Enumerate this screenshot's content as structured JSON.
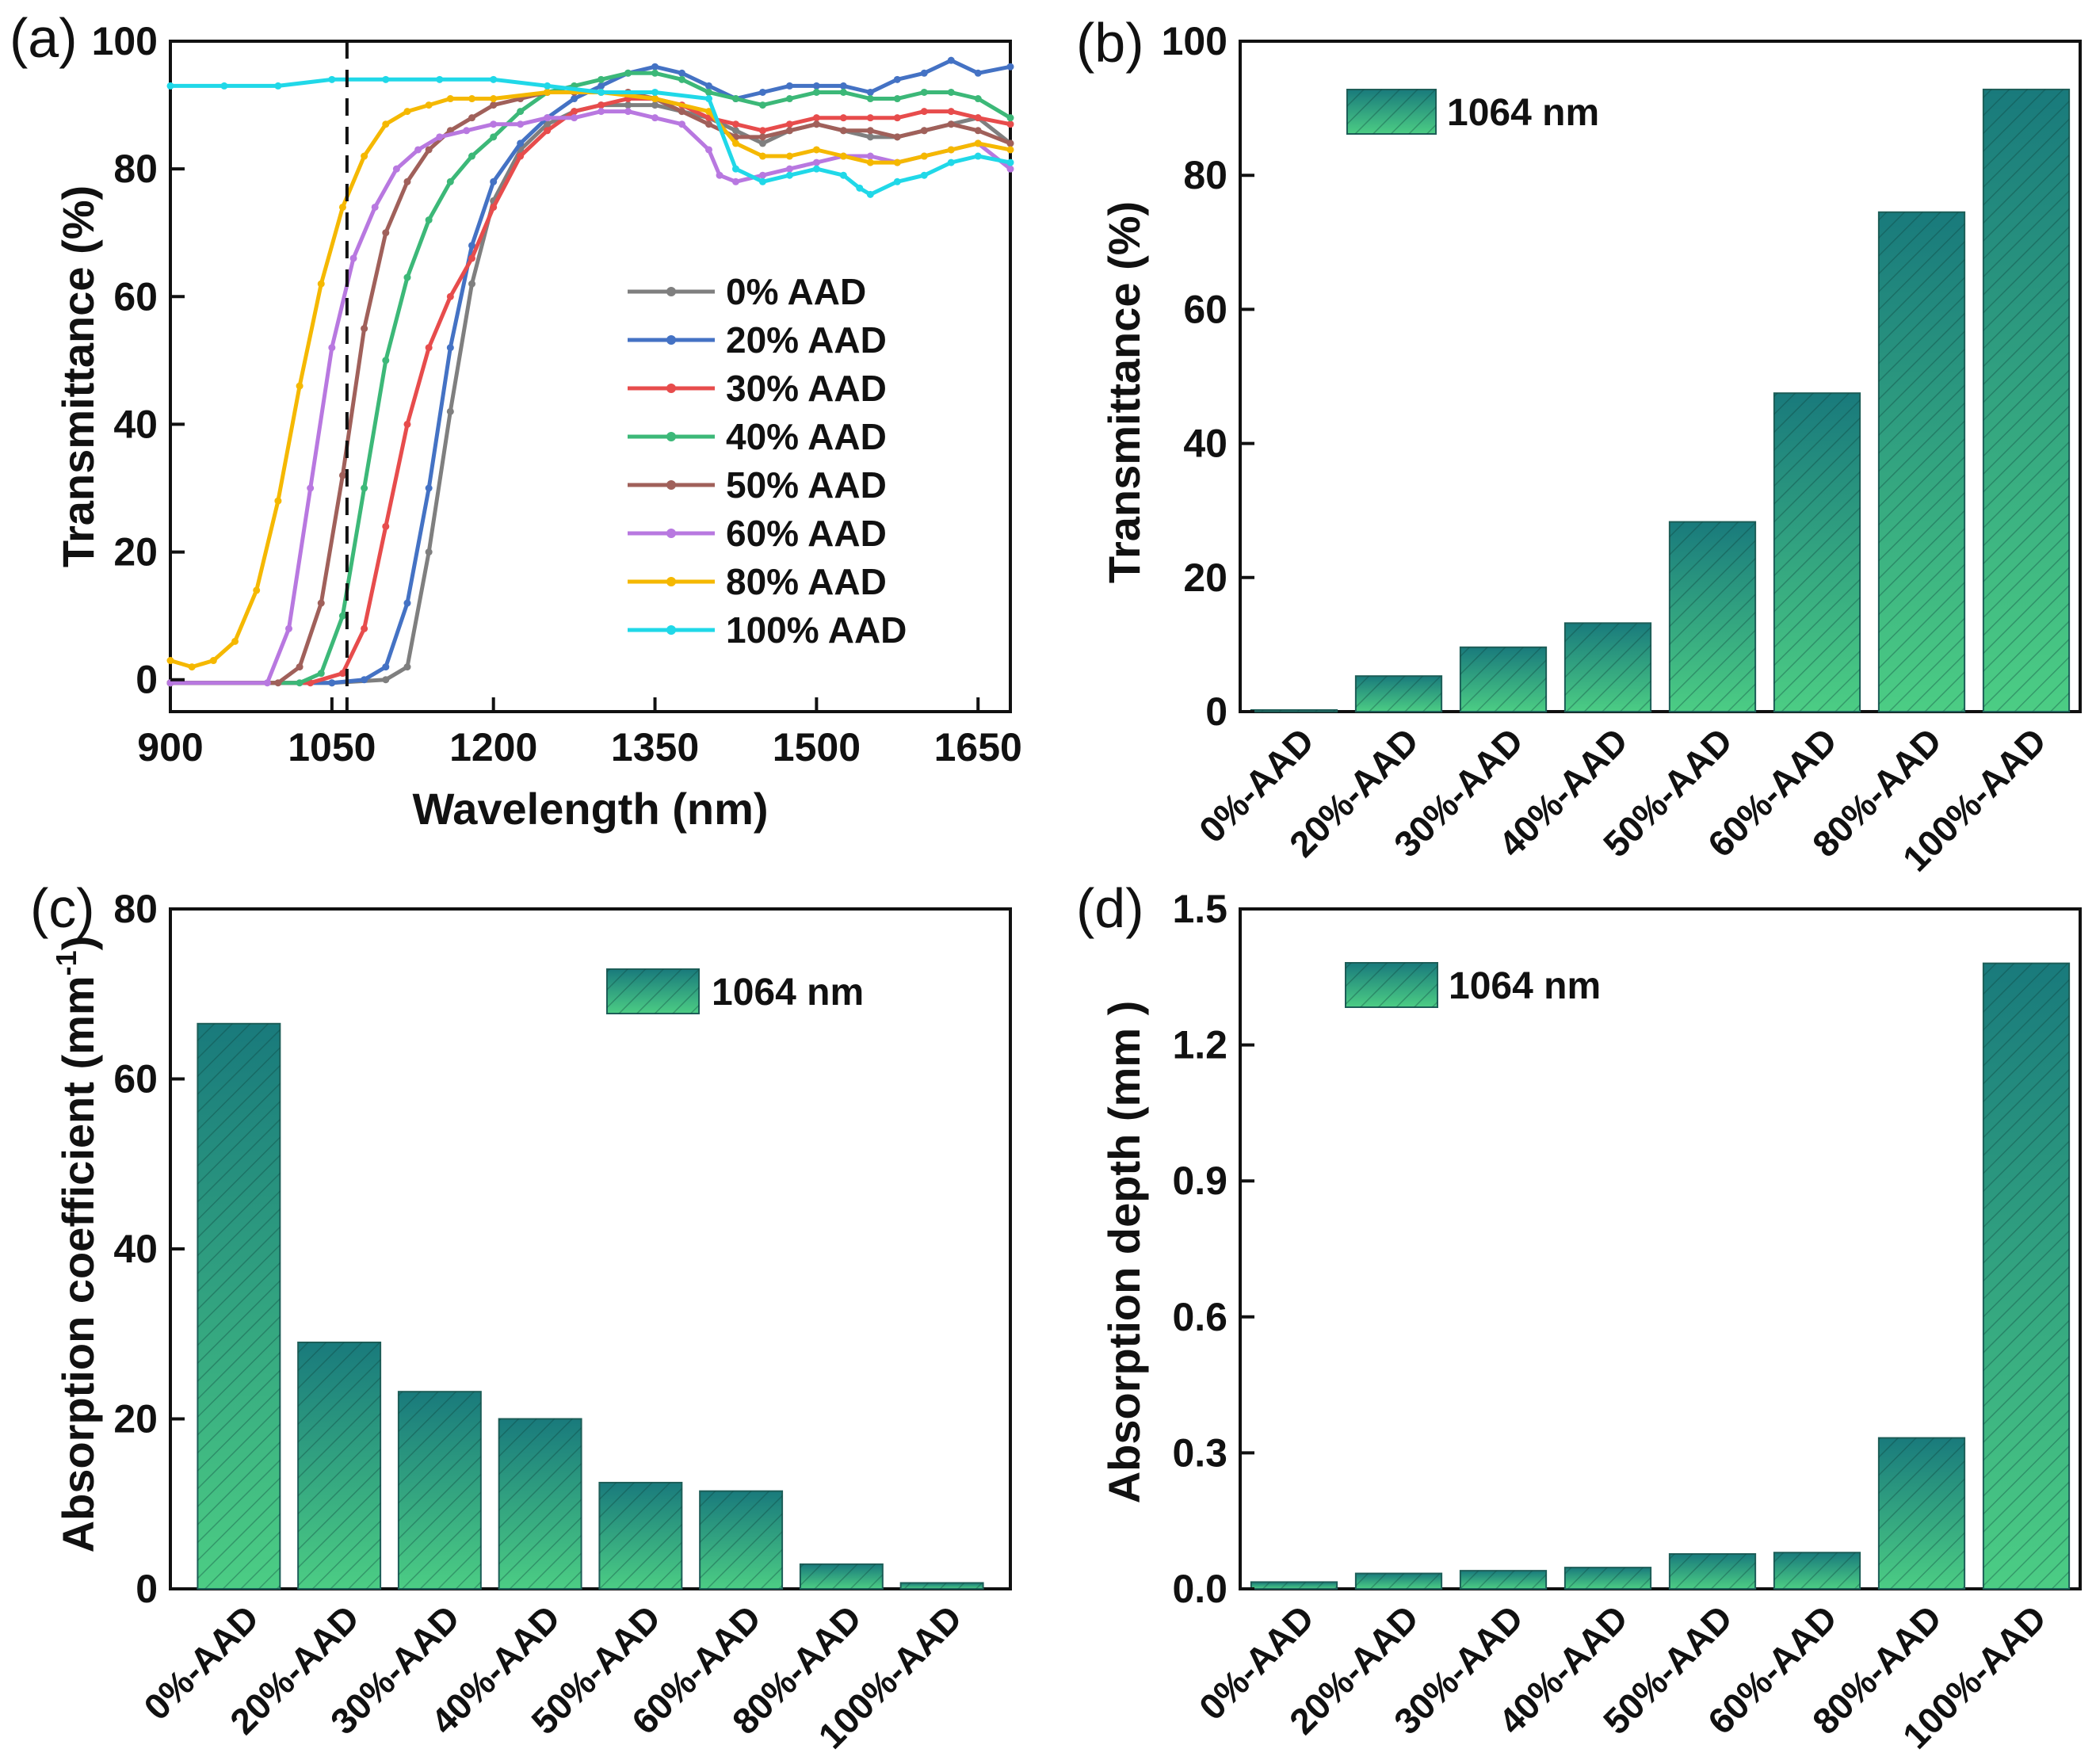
{
  "chart_data": [
    {
      "panel": "(a)",
      "type": "line",
      "xlabel": "Wavelength (nm)",
      "ylabel": "Transmittance (%)",
      "xlim": [
        900,
        1680
      ],
      "ylim": [
        -5,
        100
      ],
      "xticks": [
        900,
        1050,
        1200,
        1350,
        1500,
        1650
      ],
      "yticks": [
        0,
        20,
        40,
        60,
        80,
        100
      ],
      "reference_line_x": 1064,
      "legend_position": "center-right",
      "series": [
        {
          "name": "0% AAD",
          "color": "#7f7f7f",
          "x": [
            900,
            1050,
            1100,
            1120,
            1140,
            1160,
            1180,
            1200,
            1225,
            1250,
            1275,
            1300,
            1325,
            1350,
            1375,
            1400,
            1425,
            1450,
            1475,
            1500,
            1525,
            1550,
            1575,
            1600,
            1625,
            1650,
            1680
          ],
          "values": [
            -0.5,
            -0.5,
            0,
            2,
            20,
            42,
            62,
            75,
            83,
            87,
            89,
            90,
            90,
            90,
            89,
            88,
            86,
            84,
            86,
            87,
            86,
            85,
            85,
            86,
            87,
            88,
            84
          ]
        },
        {
          "name": "20% AAD",
          "color": "#4472c4",
          "x": [
            900,
            1050,
            1080,
            1100,
            1120,
            1140,
            1160,
            1180,
            1200,
            1225,
            1250,
            1275,
            1300,
            1325,
            1350,
            1375,
            1400,
            1425,
            1450,
            1475,
            1500,
            1525,
            1550,
            1575,
            1600,
            1625,
            1650,
            1680
          ],
          "values": [
            -0.5,
            -0.5,
            0,
            2,
            12,
            30,
            52,
            68,
            78,
            84,
            88,
            91,
            93,
            95,
            96,
            95,
            93,
            91,
            92,
            93,
            93,
            93,
            92,
            94,
            95,
            97,
            95,
            96
          ]
        },
        {
          "name": "30% AAD",
          "color": "#e74c4c",
          "x": [
            900,
            1030,
            1060,
            1080,
            1100,
            1120,
            1140,
            1160,
            1180,
            1200,
            1225,
            1250,
            1275,
            1300,
            1325,
            1350,
            1375,
            1400,
            1425,
            1450,
            1475,
            1500,
            1525,
            1550,
            1575,
            1600,
            1625,
            1650,
            1680
          ],
          "values": [
            -0.5,
            -0.5,
            1,
            8,
            24,
            40,
            52,
            60,
            66,
            74,
            82,
            86,
            89,
            90,
            91,
            91,
            90,
            88,
            87,
            86,
            87,
            88,
            88,
            88,
            88,
            89,
            89,
            88,
            87
          ]
        },
        {
          "name": "40% AAD",
          "color": "#3cb878",
          "x": [
            900,
            1020,
            1040,
            1060,
            1080,
            1100,
            1120,
            1140,
            1160,
            1180,
            1200,
            1225,
            1250,
            1275,
            1300,
            1325,
            1350,
            1375,
            1400,
            1425,
            1450,
            1475,
            1500,
            1525,
            1550,
            1575,
            1600,
            1625,
            1650,
            1680
          ],
          "values": [
            -0.5,
            -0.5,
            1,
            10,
            30,
            50,
            63,
            72,
            78,
            82,
            85,
            89,
            92,
            93,
            94,
            95,
            95,
            94,
            92,
            91,
            90,
            91,
            92,
            92,
            91,
            91,
            92,
            92,
            91,
            88
          ]
        },
        {
          "name": "50% AAD",
          "color": "#a0605a",
          "x": [
            900,
            1000,
            1020,
            1040,
            1060,
            1080,
            1100,
            1120,
            1140,
            1160,
            1180,
            1200,
            1225,
            1250,
            1275,
            1300,
            1325,
            1350,
            1375,
            1400,
            1425,
            1450,
            1475,
            1500,
            1525,
            1550,
            1575,
            1600,
            1625,
            1650,
            1680
          ],
          "values": [
            -0.5,
            -0.5,
            2,
            12,
            32,
            55,
            70,
            78,
            83,
            86,
            88,
            90,
            91,
            92,
            92,
            92,
            92,
            91,
            89,
            87,
            85,
            85,
            86,
            87,
            86,
            86,
            85,
            86,
            87,
            86,
            84
          ]
        },
        {
          "name": "60% AAD",
          "color": "#b878e0",
          "x": [
            900,
            990,
            1010,
            1030,
            1050,
            1070,
            1090,
            1110,
            1130,
            1150,
            1175,
            1200,
            1225,
            1250,
            1275,
            1300,
            1325,
            1350,
            1375,
            1400,
            1410,
            1425,
            1450,
            1475,
            1500,
            1525,
            1550,
            1575,
            1600,
            1625,
            1650,
            1680
          ],
          "values": [
            -0.5,
            -0.5,
            8,
            30,
            52,
            66,
            74,
            80,
            83,
            85,
            86,
            87,
            87,
            88,
            88,
            89,
            89,
            88,
            87,
            83,
            79,
            78,
            79,
            80,
            81,
            82,
            82,
            81,
            82,
            83,
            84,
            80
          ]
        },
        {
          "name": "80% AAD",
          "color": "#f5b800",
          "x": [
            900,
            920,
            940,
            960,
            980,
            1000,
            1020,
            1040,
            1060,
            1080,
            1100,
            1120,
            1140,
            1160,
            1180,
            1200,
            1250,
            1300,
            1350,
            1400,
            1425,
            1450,
            1475,
            1500,
            1525,
            1550,
            1575,
            1600,
            1625,
            1650,
            1680
          ],
          "values": [
            3,
            2,
            3,
            6,
            14,
            28,
            46,
            62,
            74,
            82,
            87,
            89,
            90,
            91,
            91,
            91,
            92,
            92,
            91,
            89,
            84,
            82,
            82,
            83,
            82,
            81,
            81,
            82,
            83,
            84,
            83
          ]
        },
        {
          "name": "100% AAD",
          "color": "#20d8e8",
          "x": [
            900,
            950,
            1000,
            1050,
            1100,
            1150,
            1200,
            1250,
            1300,
            1350,
            1400,
            1425,
            1450,
            1475,
            1500,
            1525,
            1540,
            1550,
            1575,
            1600,
            1625,
            1650,
            1680
          ],
          "values": [
            93,
            93,
            93,
            94,
            94,
            94,
            94,
            93,
            92,
            92,
            91,
            80,
            78,
            79,
            80,
            79,
            77,
            76,
            78,
            79,
            81,
            82,
            81
          ]
        }
      ]
    },
    {
      "panel": "(b)",
      "type": "bar",
      "ylabel": "Transmittance (%)",
      "legend": "1064 nm",
      "legend_position": "top-left",
      "categories": [
        "0%-AAD",
        "20%-AAD",
        "30%-AAD",
        "40%-AAD",
        "50%-AAD",
        "60%-AAD",
        "80%-AAD",
        "100%-AAD"
      ],
      "values": [
        0.2,
        5.3,
        9.6,
        13.2,
        28.3,
        47.5,
        74.5,
        92.8
      ],
      "ylim": [
        0,
        100
      ],
      "yticks": [
        0,
        20,
        40,
        60,
        80,
        100
      ]
    },
    {
      "panel": "(c)",
      "type": "bar",
      "ylabel": "Absorption coefficient (mm-1)",
      "ylabel_main": "Absorption coefficient (mm",
      "ylabel_sup": "-1",
      "ylabel_close": ")",
      "legend": "1064 nm",
      "legend_position": "top-right",
      "categories": [
        "0%-AAD",
        "20%-AAD",
        "30%-AAD",
        "40%-AAD",
        "50%-AAD",
        "60%-AAD",
        "80%-AAD",
        "100%-AAD"
      ],
      "values": [
        66.5,
        29.0,
        23.2,
        20.0,
        12.5,
        11.5,
        2.9,
        0.7
      ],
      "ylim": [
        0,
        80
      ],
      "yticks": [
        0,
        20,
        40,
        60,
        80
      ]
    },
    {
      "panel": "(d)",
      "type": "bar",
      "ylabel": "Absorption depth (mm )",
      "legend": "1064 nm",
      "legend_position": "top-left",
      "categories": [
        "0%-AAD",
        "20%-AAD",
        "30%-AAD",
        "40%-AAD",
        "50%-AAD",
        "60%-AAD",
        "80%-AAD",
        "100%-AAD"
      ],
      "values": [
        0.015,
        0.034,
        0.04,
        0.047,
        0.077,
        0.08,
        0.333,
        1.38
      ],
      "ylim": [
        0,
        1.5
      ],
      "yticks": [
        "0.0",
        "0.3",
        "0.6",
        "0.9",
        "1.2",
        "1.5"
      ]
    }
  ],
  "colors": {
    "bar_top": "#197a7c",
    "bar_bottom": "#4ccd84",
    "bar_stroke": "#1d5e58",
    "axis": "#111111"
  }
}
